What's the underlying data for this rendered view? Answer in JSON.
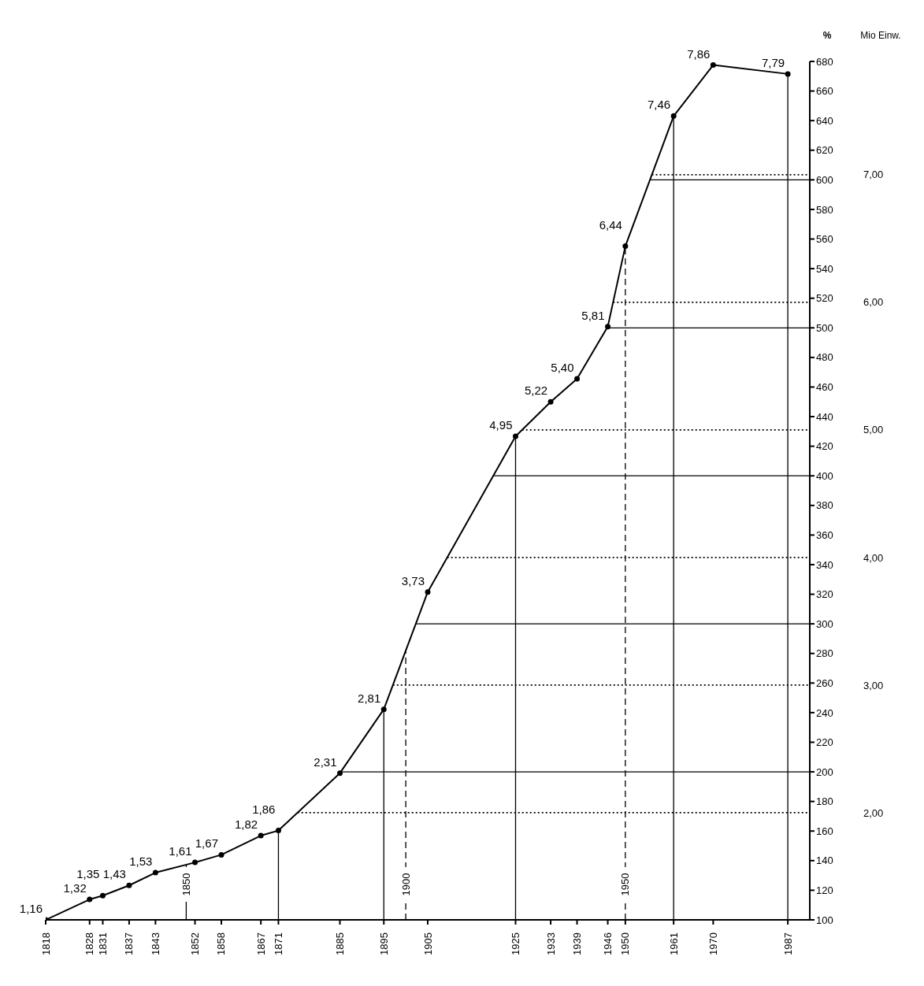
{
  "chart_data": {
    "type": "line",
    "ylabel": "%",
    "y2label": "Mio Einw.",
    "x": [
      1818,
      1828,
      1831,
      1837,
      1843,
      1852,
      1858,
      1867,
      1871,
      1885,
      1895,
      1905,
      1925,
      1933,
      1939,
      1946,
      1950,
      1961,
      1970,
      1987
    ],
    "series": [
      {
        "color": "#000000",
        "axis": "y2",
        "values": [
          1.16,
          1.32,
          1.35,
          1.43,
          1.53,
          1.61,
          1.67,
          1.82,
          1.86,
          2.31,
          2.81,
          3.73,
          4.95,
          5.22,
          5.4,
          5.81,
          6.44,
          7.46,
          7.86,
          7.79
        ],
        "value_labels": [
          "1,16",
          "1,32",
          "1,35",
          "1,43",
          "1,53",
          "1,61",
          "1,67",
          "1,82",
          "1,86",
          "2,31",
          "2,81",
          "3,73",
          "4,95",
          "5,22",
          "5,40",
          "5,81",
          "6,44",
          "7,46",
          "7,86",
          "7,79"
        ]
      }
    ],
    "xlim": [
      1818,
      1992
    ],
    "xticks": [
      1818,
      1828,
      1831,
      1837,
      1843,
      1852,
      1858,
      1867,
      1871,
      1885,
      1895,
      1905,
      1925,
      1933,
      1939,
      1946,
      1950,
      1961,
      1970,
      1987
    ],
    "ylim": [
      100,
      680
    ],
    "yticks": [
      100,
      120,
      140,
      160,
      180,
      200,
      220,
      240,
      260,
      280,
      300,
      320,
      340,
      360,
      380,
      400,
      420,
      440,
      460,
      480,
      500,
      520,
      540,
      560,
      580,
      600,
      620,
      640,
      660,
      680
    ],
    "y2lim": [
      1.16,
      7.888
    ],
    "y2ticks": [
      {
        "value": 2,
        "label": "2,00"
      },
      {
        "value": 3,
        "label": "3,00"
      },
      {
        "value": 4,
        "label": "4,00"
      },
      {
        "value": 5,
        "label": "5,00"
      },
      {
        "value": 6,
        "label": "6,00"
      },
      {
        "value": 7,
        "label": "7,00"
      }
    ],
    "marker": "circle",
    "line_style": "solid",
    "legend": false,
    "grid": false,
    "ref_lines": [
      {
        "axis": "x",
        "value": 1850,
        "label": "1850",
        "line_style": "solid"
      },
      {
        "axis": "x",
        "value": 1900,
        "label": "1900",
        "line_style": "dashed"
      },
      {
        "axis": "x",
        "value": 1950,
        "label": "1950",
        "line_style": "dashed"
      },
      {
        "axis": "x",
        "value": 1871,
        "line_style": "solid"
      },
      {
        "axis": "x",
        "value": 1895,
        "line_style": "solid"
      },
      {
        "axis": "x",
        "value": 1925,
        "line_style": "solid"
      },
      {
        "axis": "x",
        "value": 1961,
        "line_style": "solid"
      },
      {
        "axis": "x",
        "value": 1987,
        "line_style": "solid"
      },
      {
        "axis": "y",
        "value": 200,
        "line_style": "solid"
      },
      {
        "axis": "y",
        "value": 300,
        "line_style": "solid"
      },
      {
        "axis": "y",
        "value": 400,
        "line_style": "solid"
      },
      {
        "axis": "y",
        "value": 500,
        "line_style": "solid"
      },
      {
        "axis": "y",
        "value": 600,
        "line_style": "solid"
      },
      {
        "axis": "y2",
        "value": 2,
        "line_style": "dotted"
      },
      {
        "axis": "y2",
        "value": 3,
        "line_style": "dotted"
      },
      {
        "axis": "y2",
        "value": 4,
        "line_style": "dotted"
      },
      {
        "axis": "y2",
        "value": 5,
        "line_style": "dotted"
      },
      {
        "axis": "y2",
        "value": 6,
        "line_style": "dotted"
      },
      {
        "axis": "y2",
        "value": 7,
        "line_style": "dotted"
      }
    ]
  }
}
